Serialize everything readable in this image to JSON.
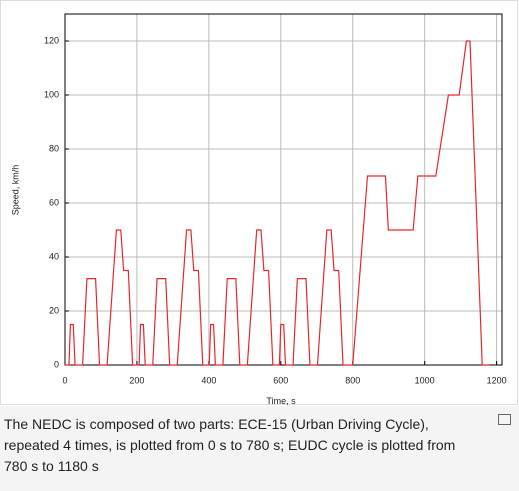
{
  "chart_data": {
    "type": "line",
    "x_label": "Time, s",
    "y_label": "Speed, km/h",
    "x": [
      0,
      11,
      15,
      23,
      28,
      49,
      61,
      85,
      96,
      117,
      143,
      155,
      163,
      176,
      188,
      195,
      206,
      210,
      218,
      223,
      244,
      256,
      280,
      291,
      312,
      338,
      350,
      358,
      371,
      383,
      390,
      401,
      405,
      413,
      418,
      439,
      451,
      475,
      486,
      507,
      533,
      545,
      553,
      566,
      578,
      585,
      596,
      600,
      608,
      613,
      634,
      646,
      670,
      681,
      702,
      728,
      740,
      748,
      761,
      773,
      780,
      800,
      841,
      891,
      899,
      968,
      981,
      1031,
      1066,
      1096,
      1116,
      1126,
      1160,
      1180
    ],
    "values": [
      0,
      0,
      15,
      15,
      0,
      0,
      32,
      32,
      0,
      0,
      50,
      50,
      35,
      35,
      0,
      0,
      0,
      15,
      15,
      0,
      0,
      32,
      32,
      0,
      0,
      50,
      50,
      35,
      35,
      0,
      0,
      0,
      15,
      15,
      0,
      0,
      32,
      32,
      0,
      0,
      50,
      50,
      35,
      35,
      0,
      0,
      0,
      15,
      15,
      0,
      0,
      32,
      32,
      0,
      0,
      50,
      50,
      35,
      35,
      0,
      0,
      0,
      70,
      70,
      50,
      50,
      70,
      70,
      100,
      100,
      120,
      120,
      0,
      0
    ],
    "color": "#e8262b",
    "xlim": [
      0,
      1215
    ],
    "ylim": [
      0,
      130
    ],
    "xticks": [
      0,
      200,
      400,
      600,
      800,
      1000,
      1200
    ],
    "yticks": [
      0,
      20,
      40,
      60,
      80,
      100,
      120
    ],
    "grid": true
  },
  "caption": "The NEDC is composed of two parts: ECE-15 (Urban Driving Cycle), repeated 4 times, is plotted from 0 s to 780 s; EUDC cycle is plotted from 780 s to 1180 s"
}
